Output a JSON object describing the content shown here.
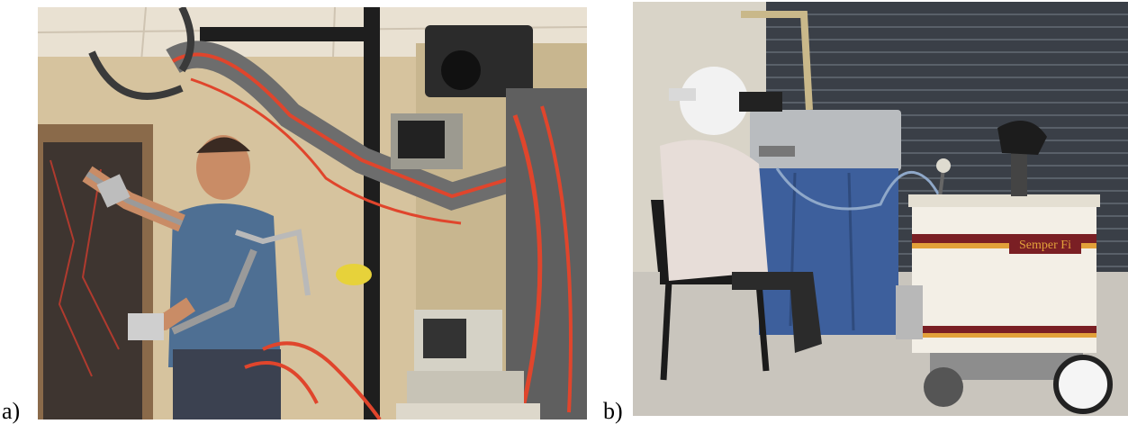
{
  "figure": {
    "panel_a": {
      "label": "a)",
      "subject": "exoskeleton-teleoperation-photo"
    },
    "panel_b": {
      "label": "b)",
      "subject": "helmet-teleoperated-robot-photo",
      "cart_sign_text": "Semper Fi"
    }
  },
  "colors": {
    "wall_beige": "#d9c7a3",
    "ceiling": "#e9e1d2",
    "red_tubing": "#e0452c",
    "shirt_blue": "#4e6f93",
    "shutter_gray": "#3a3f47",
    "floor_gray": "#c9c5bd",
    "console_blue": "#3d5f9c",
    "cart_white": "#f3efe6",
    "stripe_maroon": "#7a1f24",
    "stripe_gold": "#e2a13a"
  }
}
